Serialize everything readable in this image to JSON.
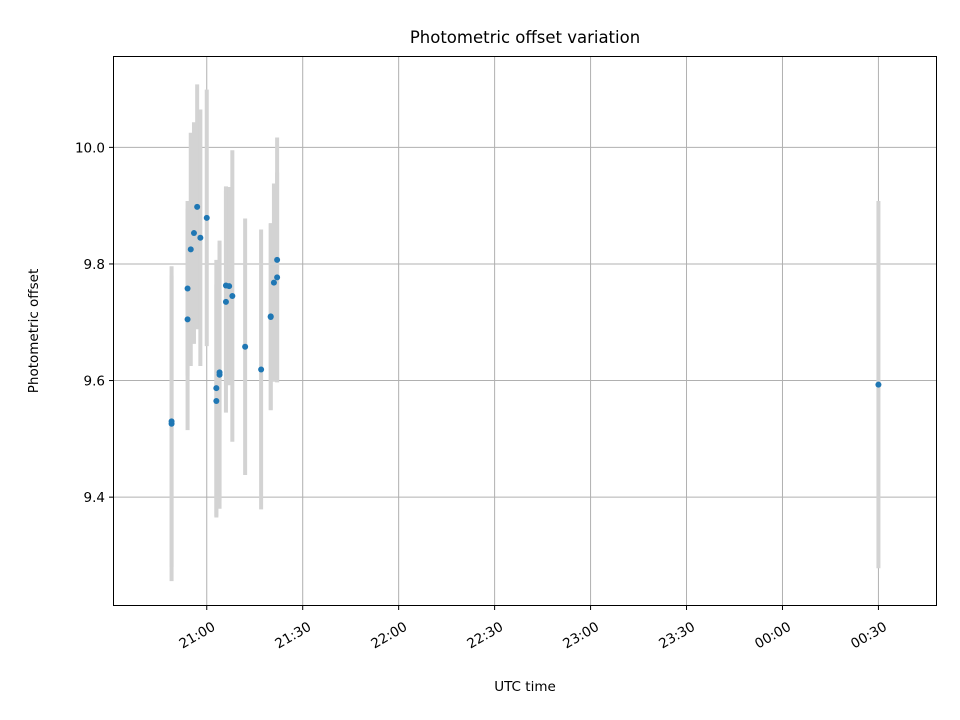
{
  "chart_data": {
    "type": "scatter",
    "title": "Photometric offset variation",
    "xlabel": "UTC time",
    "ylabel": "Photometric offset",
    "x_ticks": [
      "21:00",
      "21:30",
      "22:00",
      "22:30",
      "23:00",
      "23:30",
      "00:00",
      "00:30"
    ],
    "y_ticks": [
      "9.4",
      "9.6",
      "9.8",
      "10.0"
    ],
    "xlim": [
      "20:31",
      "00:48"
    ],
    "ylim": [
      9.215,
      10.155
    ],
    "grid": true,
    "series": [
      {
        "marker_color": "#1f77b4",
        "errorbar_color": "#d3d3d3",
        "points": [
          {
            "x": "20:49",
            "y": 9.526,
            "err": 0.27
          },
          {
            "x": "20:49",
            "y": 9.53,
            "err": 0.25
          },
          {
            "x": "20:54",
            "y": 9.705,
            "err": 0.19
          },
          {
            "x": "20:54",
            "y": 9.758,
            "err": 0.15
          },
          {
            "x": "20:55",
            "y": 9.825,
            "err": 0.2
          },
          {
            "x": "20:56",
            "y": 9.853,
            "err": 0.19
          },
          {
            "x": "20:57",
            "y": 9.898,
            "err": 0.21
          },
          {
            "x": "20:58",
            "y": 9.845,
            "err": 0.22
          },
          {
            "x": "21:00",
            "y": 9.879,
            "err": 0.22
          },
          {
            "x": "21:03",
            "y": 9.565,
            "err": 0.2
          },
          {
            "x": "21:03",
            "y": 9.587,
            "err": 0.22
          },
          {
            "x": "21:04",
            "y": 9.61,
            "err": 0.23
          },
          {
            "x": "21:04",
            "y": 9.614,
            "err": 0.22
          },
          {
            "x": "21:06",
            "y": 9.763,
            "err": 0.17
          },
          {
            "x": "21:06",
            "y": 9.735,
            "err": 0.19
          },
          {
            "x": "21:07",
            "y": 9.762,
            "err": 0.17
          },
          {
            "x": "21:08",
            "y": 9.745,
            "err": 0.25
          },
          {
            "x": "21:12",
            "y": 9.658,
            "err": 0.22
          },
          {
            "x": "21:17",
            "y": 9.619,
            "err": 0.24
          },
          {
            "x": "21:20",
            "y": 9.709,
            "err": 0.16
          },
          {
            "x": "21:20",
            "y": 9.71,
            "err": 0.16
          },
          {
            "x": "21:21",
            "y": 9.768,
            "err": 0.17
          },
          {
            "x": "21:22",
            "y": 9.777,
            "err": 0.18
          },
          {
            "x": "21:22",
            "y": 9.807,
            "err": 0.21
          },
          {
            "x": "00:30",
            "y": 9.593,
            "err": 0.315
          }
        ]
      }
    ]
  }
}
